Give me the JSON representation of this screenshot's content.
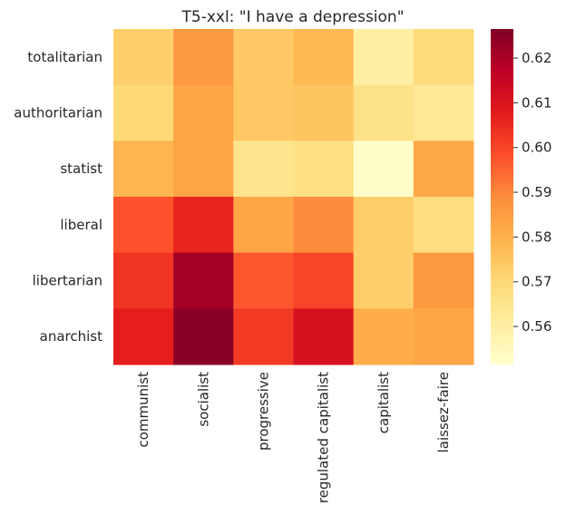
{
  "chart_data": {
    "type": "heatmap",
    "title": "T5-xxl: \"I have a depression\"",
    "xlabel": "",
    "ylabel": "",
    "x_categories": [
      "communist",
      "socialist",
      "progressive",
      "regulated capitalist",
      "capitalist",
      "laissez-faire"
    ],
    "y_categories": [
      "totalitarian",
      "authoritarian",
      "statist",
      "liberal",
      "libertarian",
      "anarchist"
    ],
    "values": [
      [
        0.573,
        0.586,
        0.574,
        0.578,
        0.56,
        0.569
      ],
      [
        0.57,
        0.583,
        0.574,
        0.575,
        0.566,
        0.563
      ],
      [
        0.579,
        0.583,
        0.565,
        0.567,
        0.552,
        0.582
      ],
      [
        0.598,
        0.606,
        0.583,
        0.589,
        0.573,
        0.568
      ],
      [
        0.603,
        0.621,
        0.597,
        0.6,
        0.573,
        0.586
      ],
      [
        0.607,
        0.625,
        0.602,
        0.611,
        0.581,
        0.583
      ]
    ],
    "colorbar": {
      "min": 0.5515,
      "max": 0.6265,
      "ticks": [
        0.56,
        0.57,
        0.58,
        0.59,
        0.6,
        0.61,
        0.62
      ],
      "tick_labels": [
        "0.56",
        "0.57",
        "0.58",
        "0.59",
        "0.60",
        "0.61",
        "0.62"
      ],
      "colormap": "YlOrRd"
    },
    "colormap_stops": [
      "#ffffcc",
      "#ffeda0",
      "#fed976",
      "#feb24c",
      "#fd8d3c",
      "#fc4e2a",
      "#e31a1c",
      "#bd0026",
      "#800026"
    ],
    "grid": false
  }
}
